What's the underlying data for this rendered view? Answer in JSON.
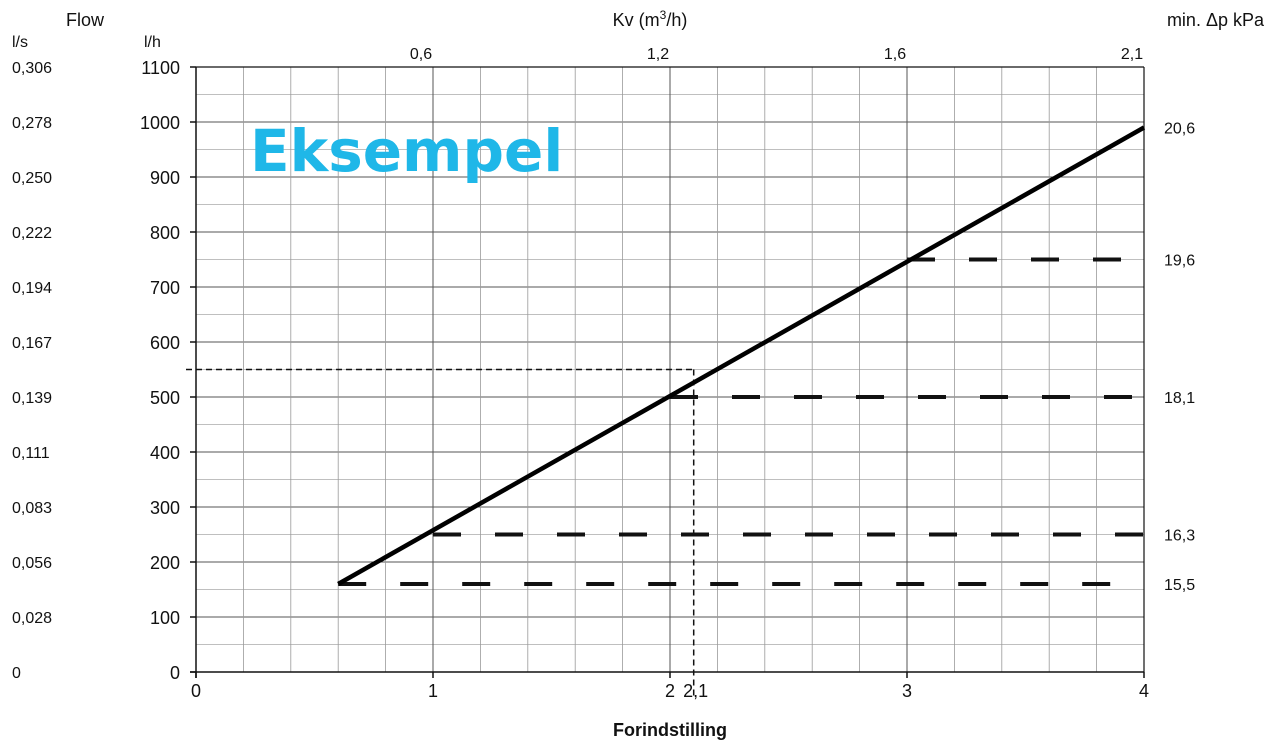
{
  "chart_data": {
    "type": "line",
    "header_left": "Flow",
    "unit_ls": "l/s",
    "unit_lh": "l/h",
    "top_axis_title_prefix": "Kv (m",
    "top_axis_title_sup": "3",
    "top_axis_title_suffix": "/h)",
    "right_axis_title": "min. Δp kPa",
    "xlabel": "Forindstilling",
    "watermark": "Eksempel",
    "xlim": [
      0,
      4
    ],
    "ylim": [
      0,
      1100
    ],
    "x_ticks": [
      {
        "v": 0,
        "label": "0"
      },
      {
        "v": 1,
        "label": "1"
      },
      {
        "v": 2,
        "label": "2"
      },
      {
        "v": 3,
        "label": "3"
      },
      {
        "v": 4,
        "label": "4"
      }
    ],
    "x_extra_tick": {
      "v": 2.1,
      "label": "2,1"
    },
    "y_ticks": [
      0,
      100,
      200,
      300,
      400,
      500,
      600,
      700,
      800,
      900,
      1000,
      1100
    ],
    "ls_ticks": [
      "0",
      "0,028",
      "0,056",
      "0,083",
      "0,111",
      "0,139",
      "0,167",
      "0,194",
      "0,222",
      "0,250",
      "0,278",
      "0,306"
    ],
    "kv_ticks": [
      {
        "x": 1.0,
        "label": "0,6"
      },
      {
        "x": 2.0,
        "label": "1,2"
      },
      {
        "x": 3.0,
        "label": "1,6"
      },
      {
        "x": 4.0,
        "label": "2,1"
      }
    ],
    "series": [
      {
        "style": "solid",
        "points": [
          [
            0.6,
            160
          ],
          [
            4.0,
            990
          ]
        ]
      }
    ],
    "dp_levels": [
      {
        "y": 160,
        "x_start": 0.6,
        "label": "15,5"
      },
      {
        "y": 250,
        "x_start": 1.0,
        "label": "16,3"
      },
      {
        "y": 500,
        "x_start": 2.0,
        "label": "18,1"
      },
      {
        "y": 750,
        "x_start": 3.0,
        "label": "19,6"
      },
      {
        "y": 990,
        "label": "20,6"
      }
    ],
    "example": {
      "x": 2.1,
      "y": 550
    },
    "grid": true
  }
}
